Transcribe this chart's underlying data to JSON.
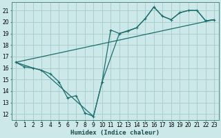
{
  "xlabel": "Humidex (Indice chaleur)",
  "bg_color": "#cce8e8",
  "grid_color": "#aacfcf",
  "line_color": "#1a6e6e",
  "xlim": [
    -0.5,
    23.5
  ],
  "ylim": [
    11.5,
    21.7
  ],
  "yticks": [
    12,
    13,
    14,
    15,
    16,
    17,
    18,
    19,
    20,
    21
  ],
  "xticks": [
    0,
    1,
    2,
    3,
    4,
    5,
    6,
    7,
    8,
    9,
    10,
    11,
    12,
    13,
    14,
    15,
    16,
    17,
    18,
    19,
    20,
    21,
    22,
    23
  ],
  "line_main_x": [
    0,
    1,
    2,
    3,
    4,
    5,
    6,
    7,
    8,
    9,
    10,
    11,
    12,
    13,
    14,
    15,
    16,
    17,
    18,
    19,
    20,
    21,
    22,
    23
  ],
  "line_main_y": [
    16.5,
    16.1,
    16.0,
    15.8,
    15.5,
    14.8,
    13.4,
    13.6,
    12.1,
    11.8,
    14.8,
    19.3,
    19.0,
    19.2,
    19.5,
    20.3,
    21.3,
    20.5,
    20.2,
    20.8,
    21.0,
    21.0,
    20.1,
    20.2
  ],
  "line_envelope_x": [
    0,
    2,
    3,
    9,
    10,
    12,
    14,
    15,
    16,
    17,
    18,
    19,
    20,
    21,
    22,
    23
  ],
  "line_envelope_y": [
    16.5,
    16.0,
    15.8,
    11.8,
    14.8,
    19.0,
    19.5,
    20.3,
    21.3,
    20.5,
    20.2,
    20.8,
    21.0,
    21.0,
    20.1,
    20.2
  ],
  "line_trend_x": [
    0,
    23
  ],
  "line_trend_y": [
    16.5,
    20.2
  ]
}
